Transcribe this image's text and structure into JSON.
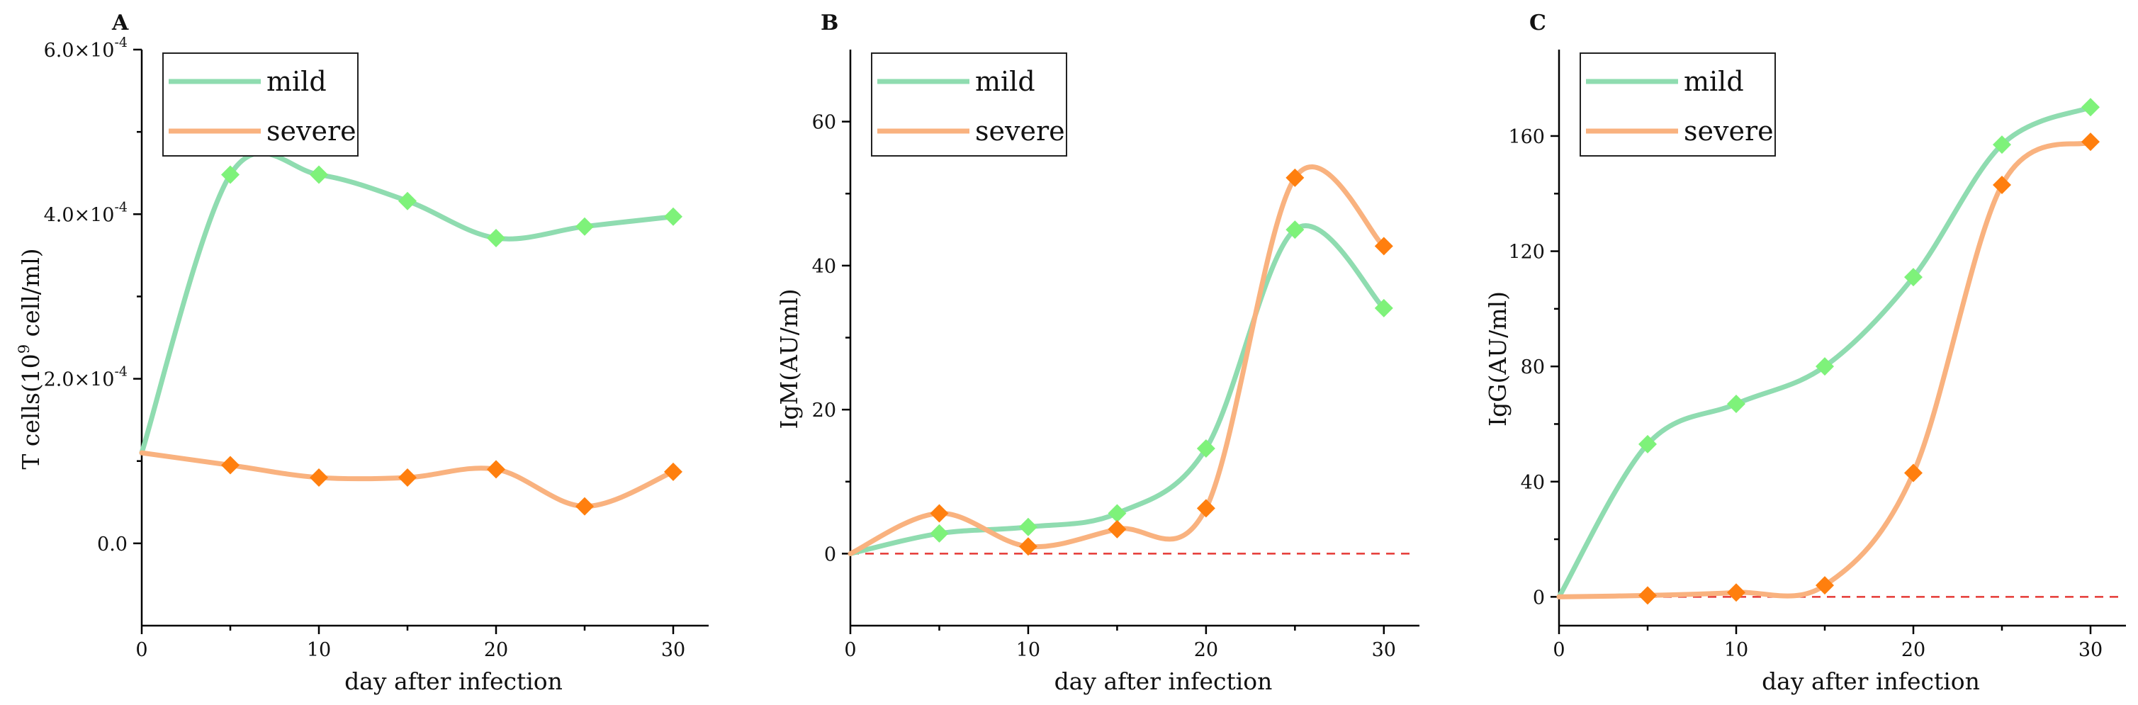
{
  "chart_data": [
    {
      "panel": "A",
      "type": "line",
      "xlabel": "day after infection",
      "ylabel": "T cells(10^9 cell/ml)",
      "ylabel_base": "T cells(10",
      "ylabel_sup": "9",
      "ylabel_rest": " cell/ml)",
      "xlim": [
        0,
        32
      ],
      "ylim": [
        -0.0001,
        0.0006
      ],
      "xticks": [
        0,
        10,
        20,
        30
      ],
      "yticks": [
        {
          "value": 0.0,
          "label": "0.0"
        },
        {
          "value": 0.0002,
          "label": "2.0×10",
          "exp": "-4"
        },
        {
          "value": 0.0004,
          "label": "4.0×10",
          "exp": "-4"
        },
        {
          "value": 0.0006,
          "label": "6.0×10",
          "exp": "-4"
        }
      ],
      "zero_line": false,
      "legend": {
        "position": "top-left"
      },
      "x": [
        0,
        5,
        10,
        15,
        20,
        25,
        30
      ],
      "series": [
        {
          "name": "mild",
          "color": "#8fdcb0",
          "marker_color": "#7ef27a",
          "values": [
            0.00011,
            0.000448,
            0.000448,
            0.000416,
            0.000371,
            0.000385,
            0.000397
          ]
        },
        {
          "name": "severe",
          "color": "#f9b27f",
          "marker_color": "#ff7f0e",
          "values": [
            0.00011,
            9.5e-05,
            8e-05,
            8e-05,
            9e-05,
            4.5e-05,
            8.7e-05
          ]
        }
      ]
    },
    {
      "panel": "B",
      "type": "line",
      "xlabel": "day after infection",
      "ylabel": "IgM(AU/ml)",
      "xlim": [
        0,
        32
      ],
      "ylim": [
        -10,
        70
      ],
      "xticks": [
        0,
        10,
        20,
        30
      ],
      "yticks": [
        {
          "value": 0,
          "label": "0"
        },
        {
          "value": 20,
          "label": "20"
        },
        {
          "value": 40,
          "label": "40"
        },
        {
          "value": 60,
          "label": "60"
        }
      ],
      "zero_line": true,
      "legend": {
        "position": "top-left"
      },
      "x": [
        0,
        5,
        10,
        15,
        20,
        25,
        30
      ],
      "series": [
        {
          "name": "mild",
          "color": "#8fdcb0",
          "marker_color": "#7ef27a",
          "values": [
            0,
            2.8,
            3.7,
            5.6,
            14.6,
            45.0,
            34.1
          ]
        },
        {
          "name": "severe",
          "color": "#f9b27f",
          "marker_color": "#ff7f0e",
          "values": [
            0,
            5.6,
            1.0,
            3.4,
            6.3,
            52.2,
            42.7
          ]
        }
      ]
    },
    {
      "panel": "C",
      "type": "line",
      "xlabel": "day after infection",
      "ylabel": "IgG(AU/ml)",
      "xlim": [
        0,
        32
      ],
      "ylim": [
        -10,
        190
      ],
      "xticks": [
        0,
        10,
        20,
        30
      ],
      "yticks": [
        {
          "value": 0,
          "label": "0"
        },
        {
          "value": 40,
          "label": "40"
        },
        {
          "value": 80,
          "label": "80"
        },
        {
          "value": 120,
          "label": "120"
        },
        {
          "value": 160,
          "label": "160"
        }
      ],
      "zero_line": true,
      "legend": {
        "position": "top-left"
      },
      "x": [
        0,
        5,
        10,
        15,
        20,
        25,
        30
      ],
      "series": [
        {
          "name": "mild",
          "color": "#8fdcb0",
          "marker_color": "#7ef27a",
          "values": [
            0,
            53,
            67,
            80,
            111,
            157,
            170
          ]
        },
        {
          "name": "severe",
          "color": "#f9b27f",
          "marker_color": "#ff7f0e",
          "values": [
            0,
            0.5,
            1.5,
            4,
            43,
            143,
            158
          ]
        }
      ]
    }
  ]
}
